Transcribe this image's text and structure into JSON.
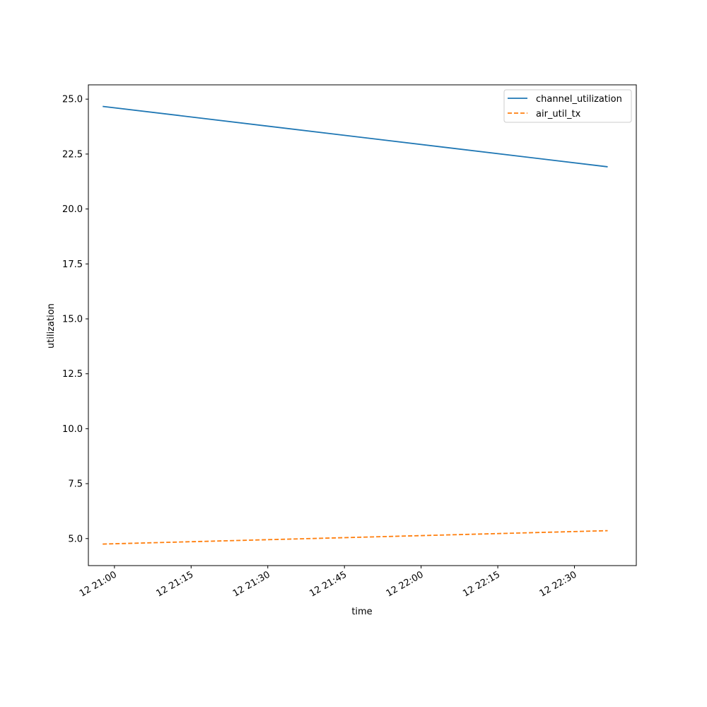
{
  "chart_data": {
    "type": "line",
    "title": "",
    "xlabel": "time",
    "ylabel": "utilization",
    "x_tick_labels": [
      "12 21:00",
      "12 21:15",
      "12 21:30",
      "12 21:45",
      "12 22:00",
      "12 22:15",
      "12 22:30"
    ],
    "x_ticks": [
      "21:00",
      "21:15",
      "21:30",
      "21:45",
      "22:00",
      "22:15",
      "22:30"
    ],
    "xlim": [
      "20:54.9",
      "22:42.1"
    ],
    "y_tick_labels": [
      "5.0",
      "7.5",
      "10.0",
      "12.5",
      "15.0",
      "17.5",
      "20.0",
      "22.5",
      "25.0"
    ],
    "y_ticks": [
      5.0,
      7.5,
      10.0,
      12.5,
      15.0,
      17.5,
      20.0,
      22.5,
      25.0
    ],
    "ylim": [
      3.77,
      25.65
    ],
    "grid": false,
    "legend_position": "top-right",
    "series": [
      {
        "name": "channel_utilization",
        "color": "#1f77b4",
        "style": "solid",
        "x": [
          "20:57.7",
          "22:36.5"
        ],
        "values": [
          24.67,
          21.92
        ]
      },
      {
        "name": "air_util_tx",
        "color": "#ff7f0e",
        "style": "dashed",
        "x": [
          "20:57.7",
          "22:36.5"
        ],
        "values": [
          4.75,
          5.36
        ]
      }
    ]
  }
}
